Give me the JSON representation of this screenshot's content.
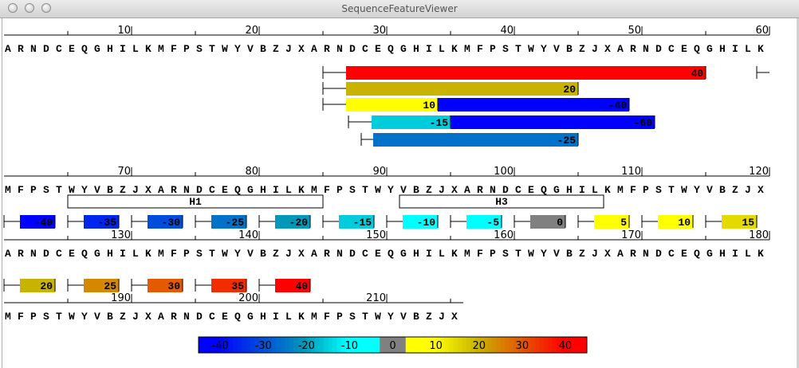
{
  "window": {
    "title": "SequenceFeatureViewer"
  },
  "sequence": "ARNDCEQGHILKMFPSTWYVBZJXARNDCEQGHILKMFPSTWYVBZJXARNDCEQGHILKMFPSTWYVBZJXARNDCEQGHILKMFPSTWYVBZJXARNDCEQGHILKMFPSTWYVBZJXARNDCEQGHILKMFPSTWYVBZJXARNDCEQGHILKMFPSTWYVBZJXARNDCEQGHILKMFPSTWYVBZJXARNDCEQGHILKMFPSTWYVBZJX",
  "ruler_labels": [
    [
      "10",
      "20",
      "30",
      "40",
      "50",
      "60"
    ],
    [
      "70",
      "80",
      "90",
      "100",
      "110",
      "120"
    ],
    [
      "130",
      "140",
      "150",
      "160",
      "170",
      "180"
    ],
    [
      "190",
      "200",
      "210"
    ]
  ],
  "features": [
    {
      "start": 26,
      "end": 55,
      "score": 40,
      "label": "40"
    },
    {
      "start": 26,
      "end": 45,
      "score": 20,
      "label": "20"
    },
    {
      "start": 26,
      "end": 34,
      "score": 10,
      "label": "10"
    },
    {
      "start": 35,
      "end": 49,
      "score": -40,
      "label": "-40"
    },
    {
      "start": 28,
      "end": 35,
      "score": -15,
      "label": "-15"
    },
    {
      "start": 36,
      "end": 51,
      "score": -60,
      "label": "-60"
    },
    {
      "start": 29,
      "end": 45,
      "score": -25,
      "label": "-25"
    },
    {
      "start": 60,
      "end": 60,
      "score": 40,
      "label": ""
    },
    {
      "start": 61,
      "end": 64,
      "score": -40,
      "label": "-40"
    },
    {
      "start": 66,
      "end": 69,
      "score": -35,
      "label": "-35"
    },
    {
      "start": 71,
      "end": 74,
      "score": -30,
      "label": "-30"
    },
    {
      "start": 76,
      "end": 79,
      "score": -25,
      "label": "-25"
    },
    {
      "start": 81,
      "end": 84,
      "score": -20,
      "label": "-20"
    },
    {
      "start": 86,
      "end": 89,
      "score": -15,
      "label": "-15"
    },
    {
      "start": 91,
      "end": 94,
      "score": -10,
      "label": "-10"
    },
    {
      "start": 96,
      "end": 99,
      "score": -5,
      "label": "-5"
    },
    {
      "start": 101,
      "end": 104,
      "score": 0,
      "label": "0"
    },
    {
      "start": 106,
      "end": 109,
      "score": 5,
      "label": "5"
    },
    {
      "start": 111,
      "end": 114,
      "score": 10,
      "label": "10"
    },
    {
      "start": 116,
      "end": 119,
      "score": 15,
      "label": "15"
    },
    {
      "start": 121,
      "end": 124,
      "score": 20,
      "label": "20"
    },
    {
      "start": 126,
      "end": 129,
      "score": 25,
      "label": "25"
    },
    {
      "start": 131,
      "end": 134,
      "score": 30,
      "label": "30"
    },
    {
      "start": 136,
      "end": 139,
      "score": 35,
      "label": "35"
    },
    {
      "start": 141,
      "end": 144,
      "score": 40,
      "label": "40"
    }
  ],
  "helices": [
    {
      "start": 66,
      "end": 85,
      "label": "H1"
    },
    {
      "start": 92,
      "end": 107,
      "label": "H3"
    }
  ],
  "legend": {
    "min": -45,
    "max": 45,
    "labels": [
      "-40",
      "-30",
      "-20",
      "-10",
      "0",
      "10",
      "20",
      "30",
      "40"
    ]
  },
  "colors": {
    "neg_strong": "#0000ff",
    "neg_mid": "#0098b8",
    "neg_weak": "#00ffff",
    "zero": "#808080",
    "pos_weak": "#ffff00",
    "pos_mid": "#c8b400",
    "pos_strong": "#ff0000"
  }
}
